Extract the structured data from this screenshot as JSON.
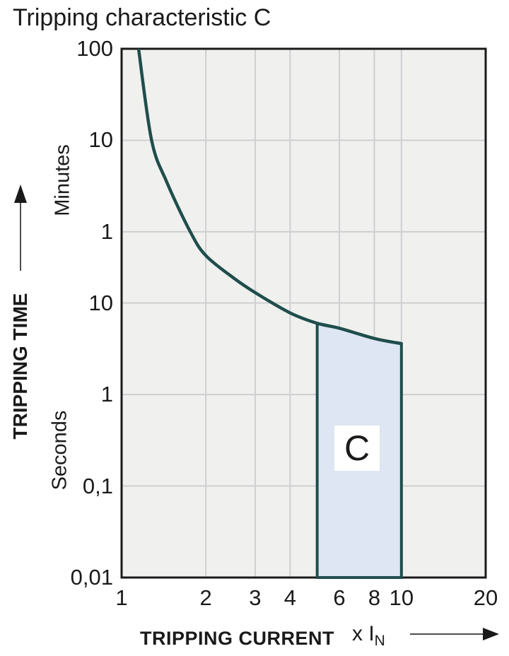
{
  "title": "Tripping characteristic C",
  "colors": {
    "curve": "#1f4e4c",
    "region_fill": "#dee5f3",
    "plot_background": "#f0f0ef",
    "grid": "#cfcfd2",
    "border": "#1a1a1a",
    "text": "#1a1a1a",
    "arrow": "#4d4d4d"
  },
  "y_axis": {
    "label": "TRIPPING TIME",
    "upper_unit": "Minutes",
    "lower_unit": "Seconds",
    "ticks": [
      {
        "label": "100",
        "t_s": 6000
      },
      {
        "label": "10",
        "t_s": 600
      },
      {
        "label": "1",
        "t_s": 60
      },
      {
        "label": "10",
        "t_s": 10
      },
      {
        "label": "1",
        "t_s": 1
      },
      {
        "label": "0,1",
        "t_s": 0.1
      },
      {
        "label": "0,01",
        "t_s": 0.01
      }
    ]
  },
  "x_axis": {
    "label": "TRIPPING CURRENT",
    "multiplier_prefix": "x I",
    "multiplier_sub": "N",
    "ticks": [
      {
        "label": "1",
        "x": 1
      },
      {
        "label": "2",
        "x": 2
      },
      {
        "label": "3",
        "x": 3
      },
      {
        "label": "4",
        "x": 4
      },
      {
        "label": "6",
        "x": 6
      },
      {
        "label": "8",
        "x": 8
      },
      {
        "label": "10",
        "x": 10
      },
      {
        "label": "20",
        "x": 20
      }
    ]
  },
  "region_label": "C",
  "chart_data": {
    "type": "line",
    "title": "Tripping characteristic C",
    "xlabel": "TRIPPING CURRENT (x IN)",
    "ylabel": "TRIPPING TIME",
    "x_scale": "log",
    "y_scale": "log",
    "xlim": [
      1,
      20
    ],
    "ylim_seconds": [
      0.01,
      6000
    ],
    "grid": true,
    "legend": "none",
    "series": [
      {
        "name": "C tripping characteristic curve",
        "points": [
          {
            "x": 1.15,
            "t_s": 6000
          },
          {
            "x": 1.28,
            "t_s": 600
          },
          {
            "x": 1.45,
            "t_s": 210
          },
          {
            "x": 1.76,
            "t_s": 60
          },
          {
            "x": 2.0,
            "t_s": 33
          },
          {
            "x": 2.5,
            "t_s": 19
          },
          {
            "x": 3.0,
            "t_s": 13
          },
          {
            "x": 4.0,
            "t_s": 7.8
          },
          {
            "x": 5.0,
            "t_s": 6.0
          },
          {
            "x": 6.0,
            "t_s": 5.3
          },
          {
            "x": 8.0,
            "t_s": 4.1
          },
          {
            "x": 10.0,
            "t_s": 3.6
          }
        ]
      }
    ],
    "region": {
      "label": "C",
      "x_from": 5,
      "x_to": 10,
      "t_bottom_s": 0.01,
      "t_top_left_s": 6.0,
      "t_top_right_s": 3.6,
      "top_follows_curve": true
    }
  }
}
